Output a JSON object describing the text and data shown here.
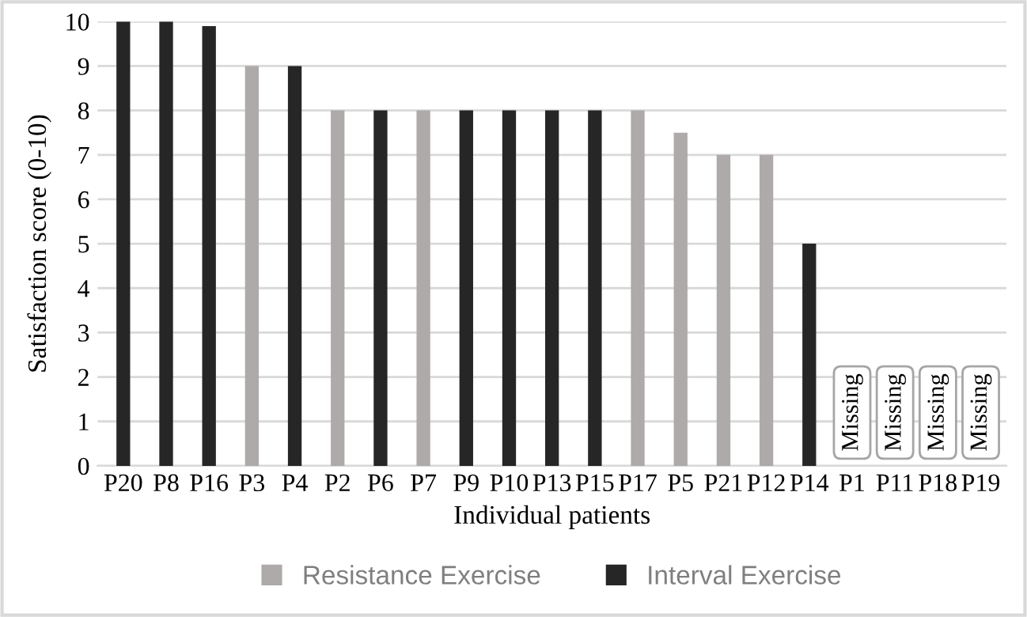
{
  "chart_data": {
    "type": "bar",
    "stacked": true,
    "xlabel": "Individual patients",
    "ylabel": "Satisfaction score (0-10)",
    "categories": [
      "P20",
      "P8",
      "P16",
      "P3",
      "P4",
      "P2",
      "P6",
      "P7",
      "P9",
      "P10",
      "P13",
      "P15",
      "P17",
      "P5",
      "P21",
      "P12",
      "P14",
      "P1",
      "P11",
      "P18",
      "P19"
    ],
    "series": [
      {
        "name": "Resistance Exercise",
        "color": "#aeaaaa",
        "values": [
          null,
          null,
          null,
          9,
          null,
          8,
          null,
          8,
          null,
          null,
          null,
          null,
          8,
          7.5,
          7,
          7,
          null,
          null,
          null,
          null,
          null
        ]
      },
      {
        "name": "Interval Exercise",
        "color": "#262626",
        "values": [
          10,
          10,
          9.9,
          null,
          9,
          null,
          8,
          null,
          8,
          8,
          8,
          8,
          null,
          null,
          null,
          null,
          5,
          null,
          null,
          null,
          null
        ]
      }
    ],
    "annotations": [
      "Missing",
      "Missing",
      "Missing",
      "Missing"
    ],
    "ylim": [
      0,
      10
    ],
    "yticks": [
      0,
      1,
      2,
      3,
      4,
      5,
      6,
      7,
      8,
      9,
      10
    ],
    "grid": "y",
    "legend": "bottom"
  }
}
